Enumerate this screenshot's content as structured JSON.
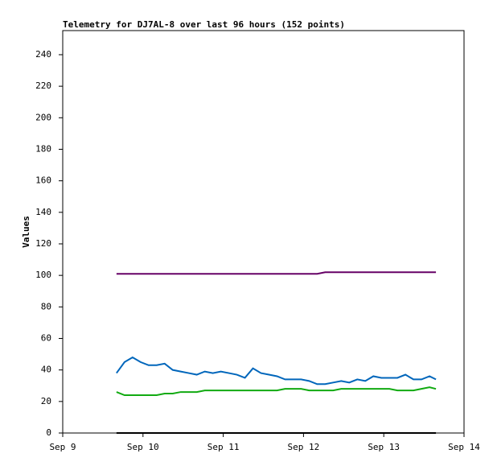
{
  "chart_data": {
    "type": "line",
    "title": "Telemetry for DJ7AL-8 over last 96 hours (152 points)",
    "y_label": "Values",
    "x": [
      0.67,
      0.77,
      0.87,
      0.97,
      1.07,
      1.17,
      1.27,
      1.37,
      1.47,
      1.57,
      1.67,
      1.77,
      1.87,
      1.97,
      2.07,
      2.17,
      2.27,
      2.37,
      2.47,
      2.57,
      2.67,
      2.77,
      2.87,
      2.97,
      3.07,
      3.17,
      3.27,
      3.37,
      3.47,
      3.57,
      3.67,
      3.77,
      3.87,
      3.97,
      4.07,
      4.17,
      4.27,
      4.37,
      4.47,
      4.57,
      4.65
    ],
    "series": [
      {
        "color": "#660066",
        "values": [
          101,
          101,
          101,
          101,
          101,
          101,
          101,
          101,
          101,
          101,
          101,
          101,
          101,
          101,
          101,
          101,
          101,
          101,
          101,
          101,
          101,
          101,
          101,
          101,
          101,
          101,
          102,
          102,
          102,
          102,
          102,
          102,
          102,
          102,
          102,
          102,
          102,
          102,
          102,
          102,
          102
        ]
      },
      {
        "color": "#0066bb",
        "values": [
          38,
          45,
          48,
          45,
          43,
          43,
          44,
          40,
          39,
          38,
          37,
          39,
          38,
          39,
          38,
          37,
          35,
          41,
          38,
          37,
          36,
          34,
          34,
          34,
          33,
          31,
          31,
          32,
          33,
          32,
          34,
          33,
          36,
          35,
          35,
          35,
          37,
          34,
          34,
          36,
          34
        ]
      },
      {
        "color": "#11aa11",
        "values": [
          26,
          24,
          24,
          24,
          24,
          24,
          25,
          25,
          26,
          26,
          26,
          27,
          27,
          27,
          27,
          27,
          27,
          27,
          27,
          27,
          27,
          28,
          28,
          28,
          27,
          27,
          27,
          27,
          28,
          28,
          28,
          28,
          28,
          28,
          28,
          27,
          27,
          27,
          28,
          29,
          28
        ]
      },
      {
        "color": "#000000",
        "values": [
          0,
          0,
          0,
          0,
          0,
          0,
          0,
          0,
          0,
          0,
          0,
          0,
          0,
          0,
          0,
          0,
          0,
          0,
          0,
          0,
          0,
          0,
          0,
          0,
          0,
          0,
          0,
          0,
          0,
          0,
          0,
          0,
          0,
          0,
          0,
          0,
          0,
          0,
          0,
          0,
          0
        ]
      }
    ],
    "xlim": [
      0,
      5
    ],
    "xticks": [
      {
        "value": 0,
        "label": "Sep 9"
      },
      {
        "value": 1,
        "label": "Sep 10"
      },
      {
        "value": 2,
        "label": "Sep 11"
      },
      {
        "value": 3,
        "label": "Sep 12"
      },
      {
        "value": 4,
        "label": "Sep 13"
      },
      {
        "value": 5,
        "label": "Sep 14"
      }
    ],
    "ylim": [
      0,
      255.3
    ],
    "yticks": [
      0,
      20,
      40,
      60,
      80,
      100,
      120,
      140,
      160,
      180,
      200,
      220,
      240
    ],
    "grid": false
  }
}
